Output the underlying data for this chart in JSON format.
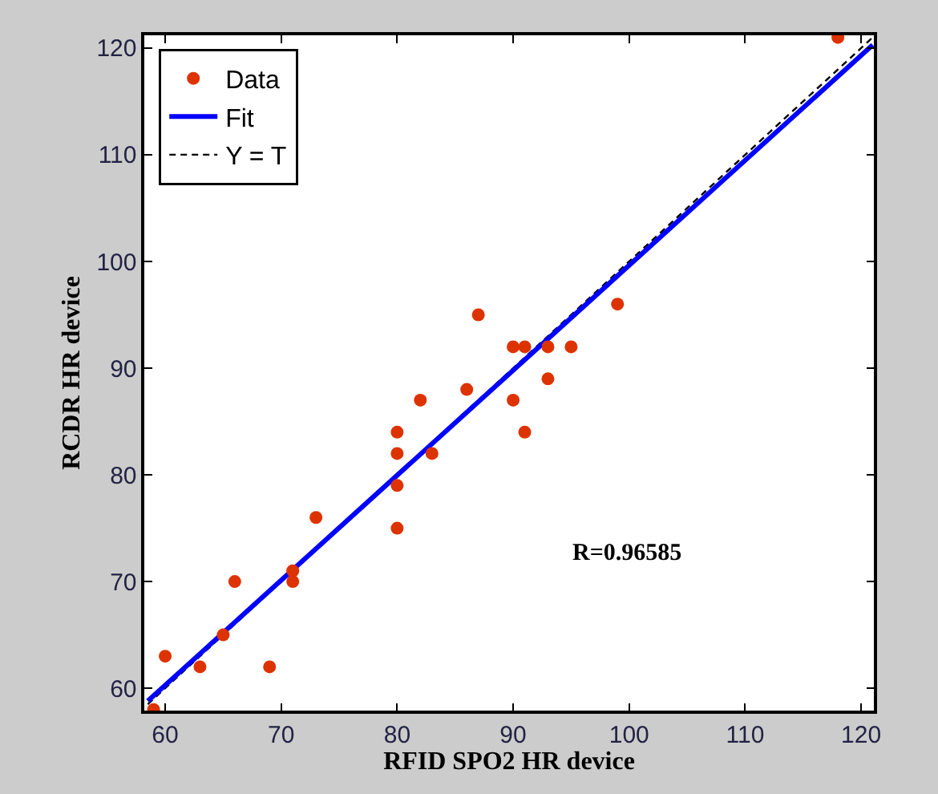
{
  "chart_data": {
    "type": "scatter",
    "xlabel": "RFID SPO2 HR device",
    "ylabel": "RCDR HR device",
    "xlim": [
      58.2,
      121.1
    ],
    "ylim": [
      57.9,
      121.2
    ],
    "xticks": [
      60,
      70,
      80,
      90,
      100,
      110,
      120
    ],
    "yticks": [
      60,
      70,
      80,
      90,
      100,
      110,
      120
    ],
    "legend": "top left",
    "series": [
      {
        "name": "Data",
        "color": "#dd3300",
        "marker": "circle",
        "x": [
          59,
          60,
          63,
          65,
          66,
          69,
          71,
          71,
          73,
          80,
          80,
          80,
          80,
          82,
          83,
          86,
          87,
          90,
          90,
          91,
          91,
          93,
          93,
          95,
          99,
          118
        ],
        "values": [
          58,
          63,
          62,
          65,
          70,
          62,
          71,
          70,
          76,
          84,
          82,
          79,
          75,
          87,
          82,
          88,
          95,
          92,
          87,
          92,
          84,
          92,
          89,
          92,
          96,
          121
        ]
      },
      {
        "name": "Fit",
        "type": "line",
        "color": "#0000ff",
        "line_style": "solid",
        "x": [
          58.5,
          121
        ],
        "values": [
          58.8,
          120.3
        ]
      },
      {
        "name": "Y = T",
        "type": "line",
        "color": "#000000",
        "line_style": "dashed",
        "x": [
          58.5,
          121
        ],
        "values": [
          58.5,
          121
        ]
      }
    ],
    "annotations": [
      "R=0.96585"
    ]
  }
}
